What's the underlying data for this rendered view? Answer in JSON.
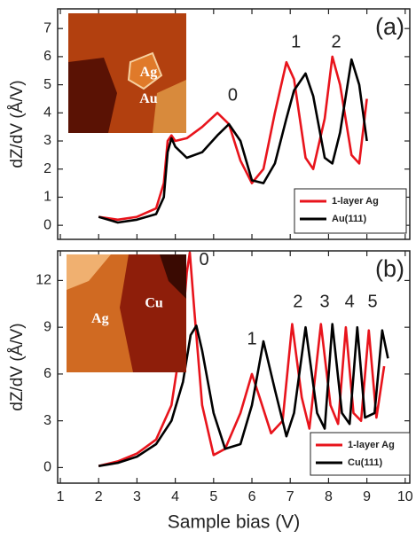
{
  "chart_data": [
    {
      "type": "line",
      "ylabel": "dZ/dV (Å/V)",
      "annotations": [
        "(a)",
        "0",
        "1",
        "2"
      ],
      "inset_labels": [
        "Ag",
        "Au"
      ],
      "xlim": [
        0.93,
        10.12
      ],
      "ylim": [
        -0.5,
        7.7
      ],
      "yticks": [
        0,
        1,
        2,
        3,
        4,
        5,
        6,
        7
      ],
      "legend": "lower right",
      "series": [
        {
          "name": "1-layer Ag",
          "color": "#e8141c",
          "x": [
            2,
            2.5,
            3,
            3.5,
            3.7,
            3.8,
            3.9,
            4,
            4.3,
            4.7,
            5.1,
            5.4,
            5.7,
            6,
            6.3,
            6.6,
            6.9,
            7.1,
            7.4,
            7.6,
            7.9,
            8.1,
            8.3,
            8.6,
            8.8,
            9.0
          ],
          "values": [
            0.3,
            0.2,
            0.3,
            0.6,
            1.5,
            3.0,
            3.2,
            3.0,
            3.1,
            3.5,
            4.0,
            3.6,
            2.3,
            1.5,
            2.0,
            4.0,
            5.8,
            5.2,
            2.4,
            2.0,
            3.8,
            6.0,
            5.0,
            2.5,
            2.2,
            4.5
          ]
        },
        {
          "name": "Au(111)",
          "color": "#000000",
          "x": [
            2,
            2.5,
            3,
            3.5,
            3.7,
            3.8,
            3.9,
            4,
            4.3,
            4.7,
            5.1,
            5.4,
            5.7,
            6,
            6.3,
            6.6,
            6.9,
            7.1,
            7.4,
            7.6,
            7.9,
            8.1,
            8.3,
            8.6,
            8.8,
            9.0
          ],
          "values": [
            0.3,
            0.1,
            0.2,
            0.4,
            1.0,
            2.6,
            3.1,
            2.8,
            2.4,
            2.6,
            3.2,
            3.6,
            3.0,
            1.6,
            1.5,
            2.2,
            3.8,
            4.8,
            5.4,
            4.6,
            2.4,
            2.2,
            3.3,
            5.9,
            5.0,
            3.0
          ]
        }
      ]
    },
    {
      "type": "line",
      "ylabel": "dZ/dV (Å/V)",
      "xlabel": "Sample bias (V)",
      "annotations": [
        "(b)",
        "0",
        "1",
        "2",
        "3",
        "4",
        "5"
      ],
      "inset_labels": [
        "Ag",
        "Cu"
      ],
      "xlim": [
        0.93,
        10.12
      ],
      "ylim": [
        -1,
        13.9
      ],
      "xticks": [
        1,
        2,
        3,
        4,
        5,
        6,
        7,
        8,
        9,
        10
      ],
      "yticks": [
        0,
        3,
        6,
        9,
        12
      ],
      "legend": "lower right",
      "series": [
        {
          "name": "1-layer Ag",
          "color": "#e8141c",
          "x": [
            2,
            2.5,
            3,
            3.5,
            3.9,
            4.15,
            4.3,
            4.38,
            4.5,
            4.7,
            5.0,
            5.3,
            5.7,
            6.0,
            6.2,
            6.5,
            6.8,
            7.05,
            7.3,
            7.5,
            7.8,
            8.05,
            8.25,
            8.45,
            8.65,
            8.85,
            9.05,
            9.25,
            9.45
          ],
          "values": [
            0.1,
            0.4,
            0.9,
            1.8,
            4.0,
            8.0,
            12.5,
            13.8,
            10.0,
            4.0,
            0.8,
            1.2,
            3.5,
            6.0,
            4.5,
            2.2,
            3.0,
            9.2,
            4.5,
            2.5,
            9.2,
            4.0,
            2.8,
            9.0,
            3.5,
            3.0,
            8.8,
            3.2,
            6.5
          ]
        },
        {
          "name": "Cu(111)",
          "color": "#000000",
          "x": [
            2,
            2.5,
            3,
            3.5,
            3.9,
            4.2,
            4.4,
            4.55,
            4.7,
            5.0,
            5.3,
            5.7,
            6.0,
            6.3,
            6.6,
            6.9,
            7.1,
            7.4,
            7.7,
            7.9,
            8.1,
            8.35,
            8.55,
            8.75,
            8.95,
            9.2,
            9.4,
            9.55
          ],
          "values": [
            0.1,
            0.3,
            0.7,
            1.5,
            3.0,
            5.5,
            8.5,
            9.1,
            7.5,
            3.5,
            1.2,
            1.5,
            4.0,
            8.1,
            5.0,
            2.0,
            3.5,
            9.0,
            3.5,
            2.5,
            9.2,
            3.5,
            2.8,
            9.0,
            3.2,
            3.5,
            8.8,
            7.0
          ]
        }
      ]
    }
  ]
}
